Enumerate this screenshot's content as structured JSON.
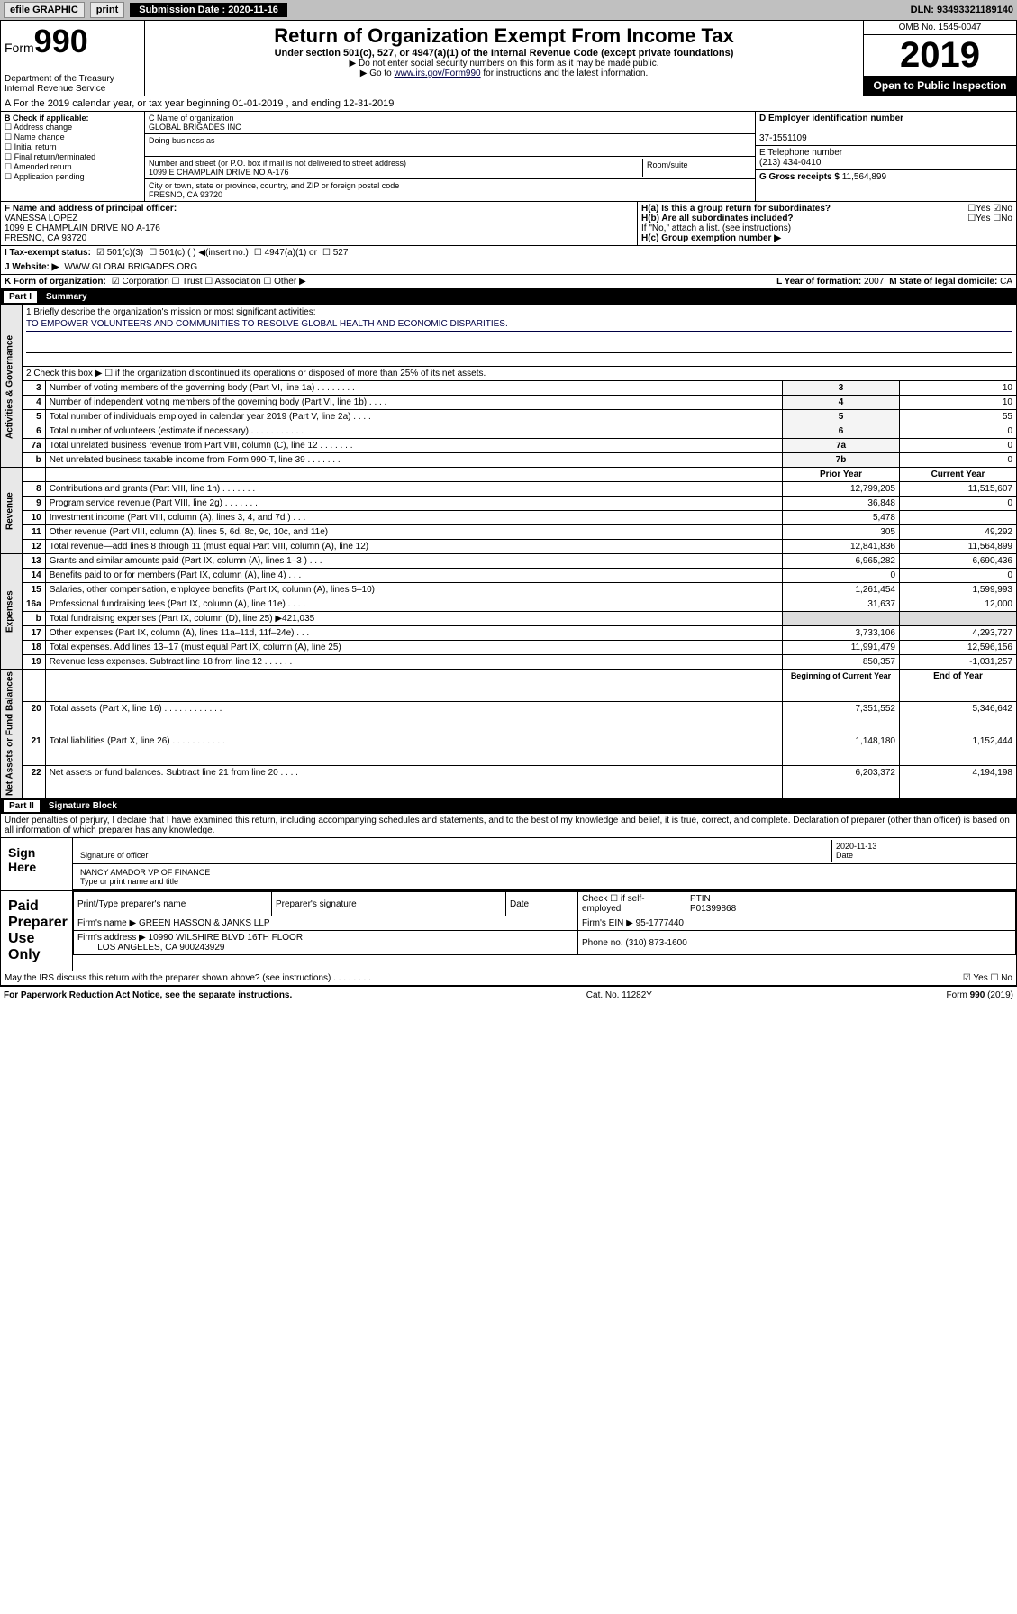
{
  "topbar": {
    "efile": "efile GRAPHIC",
    "print": "print",
    "sub_label": "Submission Date : 2020-11-16",
    "dln": "DLN: 93493321189140"
  },
  "header": {
    "form_word": "Form",
    "form_num": "990",
    "dept": "Department of the Treasury\nInternal Revenue Service",
    "title": "Return of Organization Exempt From Income Tax",
    "sub": "Under section 501(c), 527, or 4947(a)(1) of the Internal Revenue Code (except private foundations)",
    "note1": "▶ Do not enter social security numbers on this form as it may be made public.",
    "note2_pre": "▶ Go to ",
    "note2_link": "www.irs.gov/Form990",
    "note2_post": " for instructions and the latest information.",
    "omb": "OMB No. 1545-0047",
    "year": "2019",
    "open": "Open to Public Inspection"
  },
  "row_a": "A For the 2019 calendar year, or tax year beginning 01-01-2019    , and ending 12-31-2019",
  "col_b": {
    "title": "B Check if applicable:",
    "items": [
      "Address change",
      "Name change",
      "Initial return",
      "Final return/terminated",
      "Amended return",
      "Application pending"
    ]
  },
  "col_c": {
    "name_lbl": "C Name of organization",
    "name": "GLOBAL BRIGADES INC",
    "dba_lbl": "Doing business as",
    "dba": "",
    "addr_lbl": "Number and street (or P.O. box if mail is not delivered to street address)",
    "room_lbl": "Room/suite",
    "addr": "1099 E CHAMPLAIN DRIVE NO A-176",
    "city_lbl": "City or town, state or province, country, and ZIP or foreign postal code",
    "city": "FRESNO, CA  93720"
  },
  "col_d": {
    "ein_lbl": "D Employer identification number",
    "ein": "37-1551109",
    "tel_lbl": "E Telephone number",
    "tel": "(213) 434-0410",
    "gross_lbl": "G Gross receipts $",
    "gross": "11,564,899"
  },
  "row_f": {
    "f_lbl": "F Name and address of principal officer:",
    "f_name": "VANESSA LOPEZ",
    "f_addr1": "1099 E CHAMPLAIN DRIVE NO A-176",
    "f_addr2": "FRESNO, CA  93720",
    "ha": "H(a)  Is this a group return for subordinates?",
    "ha_ans": "☐Yes ☑No",
    "hb": "H(b)  Are all subordinates included?",
    "hb_ans": "☐Yes ☐No",
    "hb_note": "If \"No,\" attach a list. (see instructions)",
    "hc": "H(c)  Group exemption number ▶"
  },
  "row_i": {
    "lbl": "I Tax-exempt status:",
    "c501c3": "☑ 501(c)(3)",
    "c501c": "☐ 501(c) (   ) ◀(insert no.)",
    "c4947": "☐ 4947(a)(1) or",
    "c527": "☐ 527"
  },
  "row_j": {
    "lbl": "J Website: ▶",
    "val": "WWW.GLOBALBRIGADES.ORG"
  },
  "row_k": {
    "lbl": "K Form of organization:",
    "corp": "☑ Corporation  ☐ Trust  ☐ Association  ☐ Other ▶",
    "l_lbl": "L Year of formation:",
    "l_val": "2007",
    "m_lbl": "M State of legal domicile:",
    "m_val": "CA"
  },
  "part1": {
    "hdr_part": "Part I",
    "hdr_title": "Summary",
    "q1": "1  Briefly describe the organization's mission or most significant activities:",
    "mission": "TO EMPOWER VOLUNTEERS AND COMMUNITIES TO RESOLVE GLOBAL HEALTH AND ECONOMIC DISPARITIES.",
    "q2": "2  Check this box ▶ ☐  if the organization discontinued its operations or disposed of more than 25% of its net assets.",
    "governance_side": "Activities & Governance",
    "revenue_side": "Revenue",
    "expenses_side": "Expenses",
    "net_side": "Net Assets or Fund Balances",
    "rows_gov": [
      {
        "n": "3",
        "d": "Number of voting members of the governing body (Part VI, line 1a)  .   .   .   .   .   .   .   .",
        "k": "3",
        "v": "10"
      },
      {
        "n": "4",
        "d": "Number of independent voting members of the governing body (Part VI, line 1b)   .   .   .   .",
        "k": "4",
        "v": "10"
      },
      {
        "n": "5",
        "d": "Total number of individuals employed in calendar year 2019 (Part V, line 2a)   .   .   .   .",
        "k": "5",
        "v": "55"
      },
      {
        "n": "6",
        "d": "Total number of volunteers (estimate if necessary)    .   .   .   .   .   .   .   .   .   .   .",
        "k": "6",
        "v": "0"
      },
      {
        "n": "7a",
        "d": "Total unrelated business revenue from Part VIII, column (C), line 12  .   .   .   .   .   .   .",
        "k": "7a",
        "v": "0"
      },
      {
        "n": "b",
        "d": "Net unrelated business taxable income from Form 990-T, line 39    .   .   .   .   .   .   .",
        "k": "7b",
        "v": "0"
      }
    ],
    "prior_hdr": "Prior Year",
    "curr_hdr": "Current Year",
    "rows_rev": [
      {
        "n": "8",
        "d": "Contributions and grants (Part VIII, line 1h)   .   .   .   .   .   .   .",
        "p": "12,799,205",
        "c": "11,515,607"
      },
      {
        "n": "9",
        "d": "Program service revenue (Part VIII, line 2g)   .   .   .   .   .   .   .",
        "p": "36,848",
        "c": "0"
      },
      {
        "n": "10",
        "d": "Investment income (Part VIII, column (A), lines 3, 4, and 7d )   .   .   .",
        "p": "5,478",
        "c": ""
      },
      {
        "n": "11",
        "d": "Other revenue (Part VIII, column (A), lines 5, 6d, 8c, 9c, 10c, and 11e)",
        "p": "305",
        "c": "49,292"
      },
      {
        "n": "12",
        "d": "Total revenue—add lines 8 through 11 (must equal Part VIII, column (A), line 12)",
        "p": "12,841,836",
        "c": "11,564,899"
      }
    ],
    "rows_exp": [
      {
        "n": "13",
        "d": "Grants and similar amounts paid (Part IX, column (A), lines 1–3 )   .   .   .",
        "p": "6,965,282",
        "c": "6,690,436"
      },
      {
        "n": "14",
        "d": "Benefits paid to or for members (Part IX, column (A), line 4)   .   .   .",
        "p": "0",
        "c": "0"
      },
      {
        "n": "15",
        "d": "Salaries, other compensation, employee benefits (Part IX, column (A), lines 5–10)",
        "p": "1,261,454",
        "c": "1,599,993"
      },
      {
        "n": "16a",
        "d": "Professional fundraising fees (Part IX, column (A), line 11e)   .   .   .   .",
        "p": "31,637",
        "c": "12,000"
      },
      {
        "n": "b",
        "d": "Total fundraising expenses (Part IX, column (D), line 25) ▶421,035",
        "p": "",
        "c": ""
      },
      {
        "n": "17",
        "d": "Other expenses (Part IX, column (A), lines 11a–11d, 11f–24e)   .   .   .",
        "p": "3,733,106",
        "c": "4,293,727"
      },
      {
        "n": "18",
        "d": "Total expenses. Add lines 13–17 (must equal Part IX, column (A), line 25)",
        "p": "11,991,479",
        "c": "12,596,156"
      },
      {
        "n": "19",
        "d": "Revenue less expenses. Subtract line 18 from line 12    .   .   .   .   .   .",
        "p": "850,357",
        "c": "-1,031,257"
      }
    ],
    "begin_hdr": "Beginning of Current Year",
    "end_hdr": "End of Year",
    "rows_net": [
      {
        "n": "20",
        "d": "Total assets (Part X, line 16)   .   .   .   .   .   .   .   .   .   .   .   .",
        "p": "7,351,552",
        "c": "5,346,642"
      },
      {
        "n": "21",
        "d": "Total liabilities (Part X, line 26)   .   .   .   .   .   .   .   .   .   .   .",
        "p": "1,148,180",
        "c": "1,152,444"
      },
      {
        "n": "22",
        "d": "Net assets or fund balances. Subtract line 21 from line 20   .   .   .   .",
        "p": "6,203,372",
        "c": "4,194,198"
      }
    ]
  },
  "part2": {
    "hdr_part": "Part II",
    "hdr_title": "Signature Block",
    "perjury": "Under penalties of perjury, I declare that I have examined this return, including accompanying schedules and statements, and to the best of my knowledge and belief, it is true, correct, and complete. Declaration of preparer (other than officer) is based on all information of which preparer has any knowledge.",
    "sign_here": "Sign Here",
    "sig_off": "Signature of officer",
    "date_lbl": "Date",
    "date_val": "2020-11-13",
    "officer": "NANCY AMADOR  VP OF FINANCE",
    "type_lbl": "Type or print name and title",
    "paid": "Paid Preparer Use Only",
    "prep_name_lbl": "Print/Type preparer's name",
    "prep_sig_lbl": "Preparer's signature",
    "prep_date_lbl": "Date",
    "check_lbl": "Check ☐ if self-employed",
    "ptin_lbl": "PTIN",
    "ptin": "P01399868",
    "firm_name_lbl": "Firm's name    ▶",
    "firm_name": "GREEN HASSON & JANKS LLP",
    "firm_ein_lbl": "Firm's EIN ▶",
    "firm_ein": "95-1777440",
    "firm_addr_lbl": "Firm's address ▶",
    "firm_addr": "10990 WILSHIRE BLVD 16TH FLOOR",
    "firm_city": "LOS ANGELES, CA  900243929",
    "phone_lbl": "Phone no.",
    "phone": "(310) 873-1600",
    "discuss": "May the IRS discuss this return with the preparer shown above? (see instructions)    .   .   .   .   .   .   .   .",
    "discuss_ans": "☑ Yes  ☐ No"
  },
  "footer": {
    "paperwork": "For Paperwork Reduction Act Notice, see the separate instructions.",
    "cat": "Cat. No. 11282Y",
    "form": "Form 990 (2019)"
  }
}
